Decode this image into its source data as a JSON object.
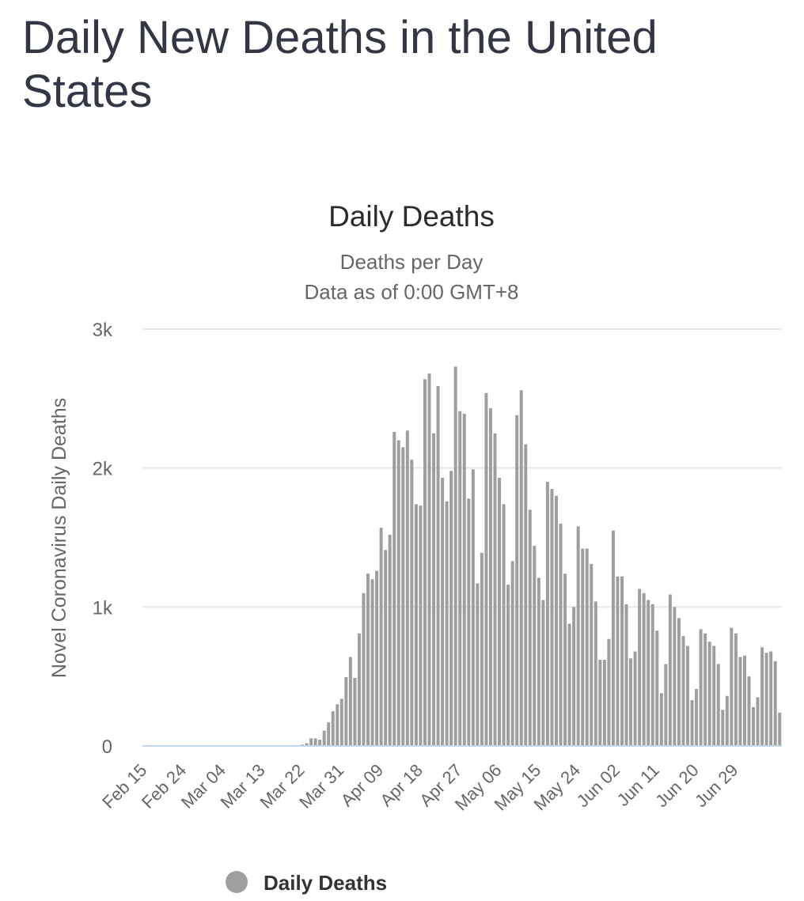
{
  "page": {
    "title": "Daily New Deaths in the United States"
  },
  "chart_data": {
    "type": "bar",
    "title": "Daily Deaths",
    "subtitle": "Deaths per Day",
    "subtitle2": "Data as of 0:00 GMT+8",
    "ylabel": "Novel Coronavirus Daily Deaths",
    "xlabel": "",
    "ylim": [
      0,
      3000
    ],
    "yticks": [
      0,
      1000,
      2000,
      3000
    ],
    "ytick_labels": [
      "0",
      "1k",
      "2k",
      "3k"
    ],
    "xtick_labels": [
      "Feb 15",
      "Feb 24",
      "Mar 04",
      "Mar 13",
      "Mar 22",
      "Mar 31",
      "Apr 09",
      "Apr 18",
      "Apr 27",
      "May 06",
      "May 15",
      "May 24",
      "Jun 02",
      "Jun 11",
      "Jun 20",
      "Jun 29"
    ],
    "xtick_every": 9,
    "grid": true,
    "legend": "bottom",
    "bar_color": "#9e9e9e",
    "axis_color": "#c8d4ee",
    "grid_color": "#e6e6e6",
    "series": [
      {
        "name": "Daily Deaths",
        "start_date": "Feb 15",
        "values": [
          0,
          0,
          0,
          0,
          0,
          0,
          0,
          0,
          0,
          0,
          0,
          0,
          0,
          0,
          0,
          0,
          0,
          0,
          0,
          0,
          0,
          0,
          0,
          0,
          0,
          0,
          0,
          0,
          0,
          0,
          0,
          0,
          0,
          0,
          0,
          0,
          10,
          20,
          55,
          55,
          45,
          110,
          170,
          250,
          300,
          340,
          495,
          640,
          490,
          810,
          1100,
          1240,
          1200,
          1260,
          1570,
          1410,
          1520,
          2260,
          2200,
          2150,
          2270,
          2060,
          1740,
          1730,
          2640,
          2680,
          2250,
          2590,
          1930,
          1760,
          1980,
          2730,
          2410,
          2390,
          1780,
          1990,
          1170,
          1390,
          2540,
          2430,
          2250,
          1930,
          1740,
          1160,
          1330,
          2380,
          2560,
          2170,
          1700,
          1440,
          1210,
          1050,
          1900,
          1850,
          1800,
          1600,
          1240,
          880,
          1000,
          1580,
          1420,
          1420,
          1310,
          1040,
          620,
          620,
          770,
          1550,
          1220,
          1220,
          1020,
          630,
          680,
          1130,
          1100,
          1050,
          1020,
          830,
          380,
          590,
          1090,
          1000,
          920,
          790,
          720,
          330,
          410,
          840,
          810,
          750,
          720,
          590,
          260,
          360,
          850,
          810,
          640,
          650,
          500,
          280,
          350,
          710,
          670,
          680,
          610,
          240
        ]
      }
    ]
  }
}
